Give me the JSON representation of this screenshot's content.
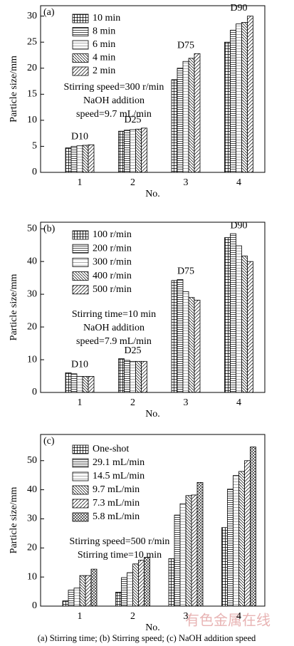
{
  "chart_data": [
    {
      "type": "bar",
      "panel_label": "(a)",
      "categories": [
        "1",
        "2",
        "3",
        "4"
      ],
      "xlabel": "No.",
      "ylabel": "Particle size/mm",
      "ylim": [
        0,
        32
      ],
      "yticks": [
        0,
        5,
        10,
        15,
        20,
        25,
        30
      ],
      "group_labels": [
        "D10",
        "D25",
        "D75",
        "D90"
      ],
      "annotation": [
        "Stirring speed=300 r/min",
        "NaOH addition",
        "speed=9.7 mL/min"
      ],
      "series": [
        {
          "name": "10 min",
          "values": [
            4.7,
            7.9,
            17.8,
            25.0
          ]
        },
        {
          "name": "8 min",
          "values": [
            5.0,
            8.1,
            20.0,
            27.3
          ]
        },
        {
          "name": "6 min",
          "values": [
            5.1,
            8.2,
            21.3,
            28.5
          ]
        },
        {
          "name": "4 min",
          "values": [
            5.2,
            8.3,
            21.9,
            28.8
          ]
        },
        {
          "name": "2 min",
          "values": [
            5.3,
            8.5,
            22.8,
            30.0
          ]
        }
      ]
    },
    {
      "type": "bar",
      "panel_label": "(b)",
      "categories": [
        "1",
        "2",
        "3",
        "4"
      ],
      "xlabel": "No.",
      "ylabel": "Particle size/mm",
      "ylim": [
        0,
        52
      ],
      "yticks": [
        0,
        10,
        20,
        30,
        40,
        50
      ],
      "group_labels": [
        "D10",
        "D25",
        "D75",
        "D90"
      ],
      "annotation": [
        "Stirring time=10 min",
        "NaOH addition",
        "speed=7.9 mL/min"
      ],
      "series": [
        {
          "name": "100 r/min",
          "values": [
            6.0,
            10.3,
            34.2,
            47.3
          ]
        },
        {
          "name": "200 r/min",
          "values": [
            5.7,
            9.8,
            34.5,
            48.5
          ]
        },
        {
          "name": "300 r/min",
          "values": [
            4.9,
            9.5,
            30.8,
            44.8
          ]
        },
        {
          "name": "400 r/min",
          "values": [
            4.9,
            9.5,
            29.0,
            41.7
          ]
        },
        {
          "name": "500 r/min",
          "values": [
            4.9,
            9.5,
            28.2,
            40.0
          ]
        }
      ]
    },
    {
      "type": "bar",
      "panel_label": "(c)",
      "categories": [
        "1",
        "2",
        "3",
        "4"
      ],
      "xlabel": "No.",
      "ylabel": "Particle size/mm",
      "ylim": [
        0,
        59
      ],
      "yticks": [
        0,
        10,
        20,
        30,
        40,
        50
      ],
      "annotation": [
        "Stirring speed=500 r/min",
        "Stirring time=10 min"
      ],
      "series": [
        {
          "name": "One-shot",
          "values": [
            1.8,
            4.8,
            16.3,
            27.0
          ]
        },
        {
          "name": "29.1 mL/min",
          "values": [
            5.5,
            9.8,
            31.3,
            40.2
          ]
        },
        {
          "name": "14.5 mL/min",
          "values": [
            6.2,
            11.5,
            35.2,
            44.9
          ]
        },
        {
          "name": "9.7 mL/min",
          "values": [
            10.5,
            14.5,
            38.0,
            46.3
          ]
        },
        {
          "name": "7.3 mL/min",
          "values": [
            10.5,
            15.8,
            38.2,
            50.0
          ]
        },
        {
          "name": "5.8 mL/min",
          "values": [
            12.7,
            16.8,
            42.5,
            54.7
          ]
        }
      ]
    }
  ],
  "caption": "(a) Stirring time; (b) Stirring speed; (c) NaOH addition speed",
  "watermark": "有色金属在线"
}
